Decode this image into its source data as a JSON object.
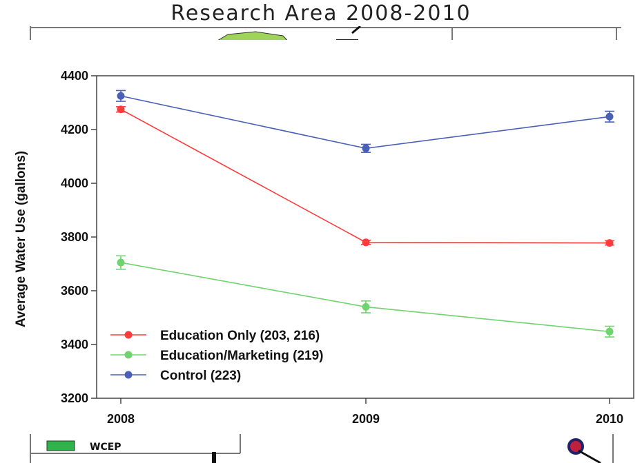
{
  "map_title": "Research Area 2008-2010",
  "map_legend_label": "WCEP",
  "colors": {
    "education_only": "#ff3b3b",
    "education_marketing": "#6fd36f",
    "control": "#4a5fb8",
    "map_green": "#9fd35a",
    "legend_green": "#2fb34a"
  },
  "chart_data": {
    "type": "line",
    "x": [
      "2008",
      "2009",
      "2010"
    ],
    "ylabel": "Average Water Use (gallons)",
    "ylim": [
      3200,
      4400
    ],
    "yticks": [
      3200,
      3400,
      3600,
      3800,
      4000,
      4200,
      4400
    ],
    "legend_position": "bottom-left",
    "series": [
      {
        "name": "Education Only (203, 216)",
        "color": "#ff3b3b",
        "values": [
          4275,
          3780,
          3778
        ],
        "errors": [
          10,
          8,
          8
        ]
      },
      {
        "name": "Education/Marketing (219)",
        "color": "#6fd36f",
        "values": [
          3705,
          3540,
          3448
        ],
        "errors": [
          25,
          22,
          20
        ]
      },
      {
        "name": "Control (223)",
        "color": "#4a5fb8",
        "values": [
          4325,
          4130,
          4248
        ],
        "errors": [
          20,
          15,
          20
        ]
      }
    ]
  }
}
